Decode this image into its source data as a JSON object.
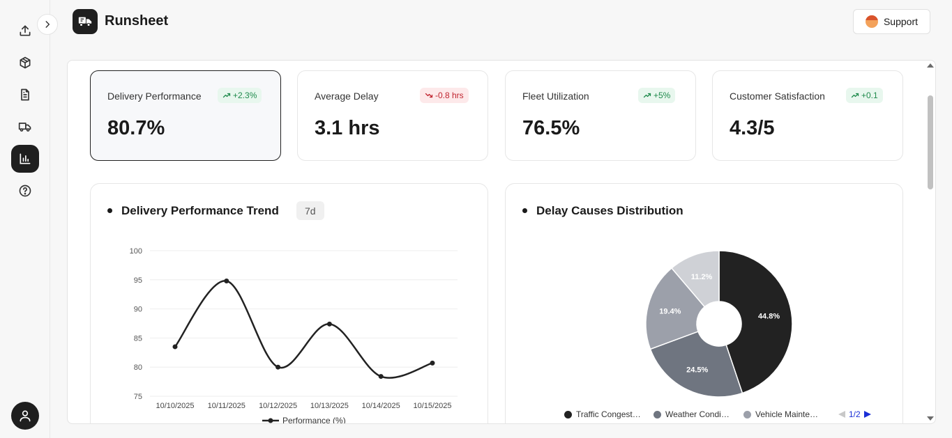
{
  "app": {
    "title": "Runsheet",
    "support_label": "Support"
  },
  "sidebar": {
    "items": [
      {
        "icon": "upload-icon"
      },
      {
        "icon": "package-icon"
      },
      {
        "icon": "document-icon"
      },
      {
        "icon": "truck-icon"
      },
      {
        "icon": "bar-chart-icon",
        "active": true
      },
      {
        "icon": "help-icon"
      }
    ]
  },
  "kpis": [
    {
      "label": "Delivery Performance",
      "value": "80.7%",
      "change": "+2.3%",
      "trend": "up"
    },
    {
      "label": "Average Delay",
      "value": "3.1 hrs",
      "change": "-0.8 hrs",
      "trend": "down"
    },
    {
      "label": "Fleet Utilization",
      "value": "76.5%",
      "change": "+5%",
      "trend": "up"
    },
    {
      "label": "Customer Satisfaction",
      "value": "4.3/5",
      "change": "+0.1",
      "trend": "up"
    }
  ],
  "trend_card": {
    "title": "Delivery Performance Trend",
    "range": "7d"
  },
  "pie_card": {
    "title": "Delay Causes Distribution",
    "legend_page": "1/2"
  },
  "colors": {
    "accent": "#1f1f1f",
    "up": "#1f8a4c",
    "down": "#c0242f",
    "pager_arrow": "#1a2fd6"
  },
  "chart_data": [
    {
      "type": "line",
      "title": "Delivery Performance Trend",
      "x": [
        "10/10/2025",
        "10/11/2025",
        "10/12/2025",
        "10/13/2025",
        "10/14/2025",
        "10/15/2025"
      ],
      "series": [
        {
          "name": "Performance (%)",
          "values": [
            83.5,
            94.8,
            80.0,
            87.4,
            78.4,
            80.7
          ]
        }
      ],
      "ylim": [
        75,
        100
      ],
      "yticks": [
        "100",
        "95",
        "90",
        "85",
        "80",
        "75"
      ],
      "grid": true,
      "legend": "bottom"
    },
    {
      "type": "pie",
      "title": "Delay Causes Distribution",
      "slices": [
        {
          "label": "Traffic Congest…",
          "value": 44.8,
          "display": "44.8%",
          "color": "#222222"
        },
        {
          "label": "Weather Condi…",
          "value": 24.5,
          "display": "24.5%",
          "color": "#6f7580"
        },
        {
          "label": "Vehicle Mainte…",
          "value": 19.4,
          "display": "19.4%",
          "color": "#9ca0aa"
        },
        {
          "label": "",
          "value": 11.2,
          "display": "11.2%",
          "color": "#cfd1d6"
        }
      ],
      "legend": "bottom"
    }
  ]
}
